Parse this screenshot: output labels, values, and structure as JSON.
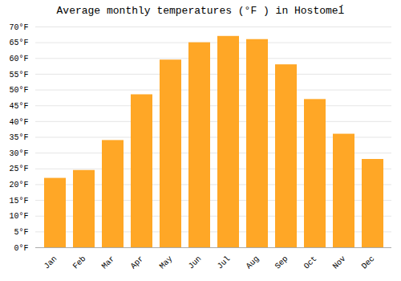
{
  "chart_data": {
    "type": "bar",
    "title": "Average monthly temperatures (°F ) in Hostomeĺ",
    "categories": [
      "Jan",
      "Feb",
      "Mar",
      "Apr",
      "May",
      "Jun",
      "Jul",
      "Aug",
      "Sep",
      "Oct",
      "Nov",
      "Dec"
    ],
    "values": [
      22,
      24.5,
      34,
      48.5,
      59.5,
      65,
      67,
      66,
      58,
      47,
      36,
      28
    ],
    "color": "#FFA726",
    "ylim": [
      0,
      70
    ],
    "yticks": [
      {
        "value": 0,
        "label": "0°F"
      },
      {
        "value": 5,
        "label": "5°F"
      },
      {
        "value": 10,
        "label": "10°F"
      },
      {
        "value": 15,
        "label": "15°F"
      },
      {
        "value": 20,
        "label": "20°F"
      },
      {
        "value": 25,
        "label": "25°F"
      },
      {
        "value": 30,
        "label": "30°F"
      },
      {
        "value": 35,
        "label": "35°F"
      },
      {
        "value": 40,
        "label": "40°F"
      },
      {
        "value": 45,
        "label": "45°F"
      },
      {
        "value": 50,
        "label": "50°F"
      },
      {
        "value": 55,
        "label": "55°F"
      },
      {
        "value": 60,
        "label": "60°F"
      },
      {
        "value": 65,
        "label": "65°F"
      },
      {
        "value": 70,
        "label": "70°F"
      }
    ],
    "grid": true
  }
}
